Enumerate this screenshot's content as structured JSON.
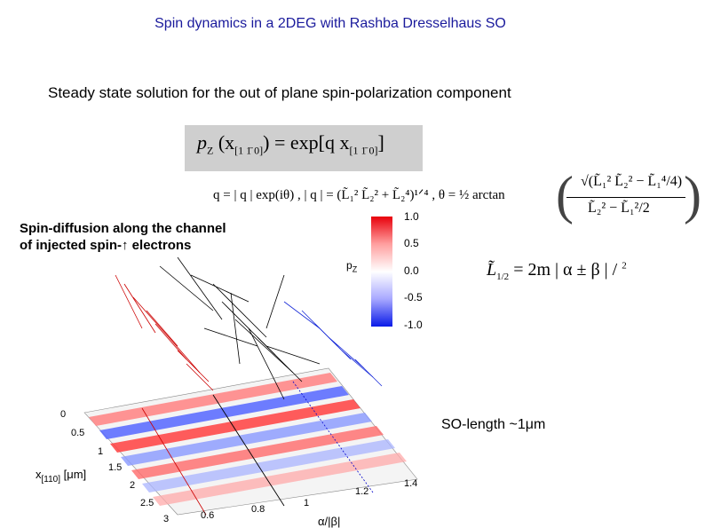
{
  "slide": {
    "title": "Spin dynamics in a 2DEG with Rashba Dresselhaus SO",
    "subtitle": "Steady state solution for the out of plane spin-polarization component",
    "spin_label_line1": "Spin-diffusion along the channel",
    "spin_label_line2_pre": "of injected spin-",
    "spin_label_arrow": "↑",
    "spin_label_line2_post": " electrons",
    "so_length": "SO-length ~1μm"
  },
  "formulas": {
    "steady_state_lhs": "p",
    "steady_state_lhs_sub": "Z",
    "steady_state_arg": "(x",
    "steady_state_arg_sub": "[1 1̄ 0]",
    "steady_state_rhs": ") = exp[q x",
    "steady_state_rhs_sub": "[1 1̄ 0]",
    "steady_state_end": "]",
    "q_definition": "q = | q | exp(iθ) ,  | q | = (L̃₁² L̃₂² + L̃₂⁴)¹ᐟ⁴ ,  θ = ½ arctan",
    "arctan_numerator": "√(L̃₁² L̃₂² − L̃₁⁴/4)",
    "arctan_denominator": "L̃₂² − L̃₁²/2",
    "length_lhs": "L̃",
    "length_lhs_sub": "1/2",
    "length_rhs": " = 2m | α ± β | / ",
    "length_rhs_sup": "2"
  },
  "colorbar": {
    "label": "p",
    "label_sub": "Z",
    "ticks": [
      "1.0",
      "0.5",
      "0.0",
      "-0.5",
      "-1.0"
    ],
    "max_color": "#e8000b",
    "mid_color": "#ffffff",
    "min_color": "#0a1be8"
  },
  "plot_axes": {
    "x_title": "x",
    "x_title_sub": "[110]",
    "x_title_unit": " [μm]",
    "x_ticks": [
      "0",
      "0.5",
      "1",
      "1.5",
      "2",
      "2.5",
      "3"
    ],
    "y_title": "α/|β|",
    "y_ticks": [
      "0.6",
      "0.8",
      "1",
      "1.2",
      "1.4"
    ]
  }
}
